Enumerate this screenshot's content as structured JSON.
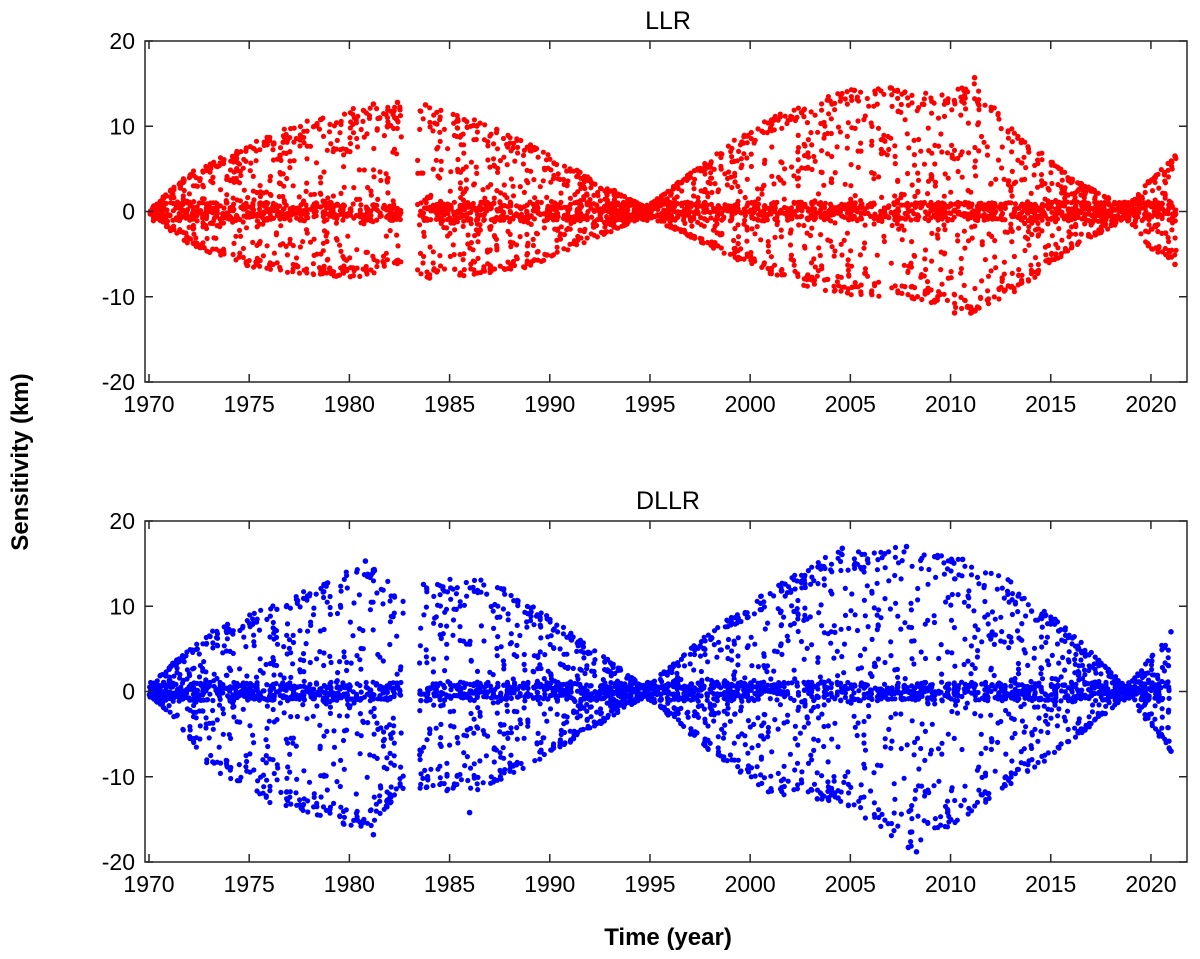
{
  "figure": {
    "ylabel": "Sensitivity (km)",
    "xlabel": "Time (year)"
  },
  "chart_data": [
    {
      "type": "scatter",
      "title": "LLR",
      "xlabel": "",
      "ylabel": "Sensitivity (km)",
      "xlim": [
        1969.8,
        1970.0
      ],
      "ylim": [
        -20,
        20
      ],
      "xticks": [
        "1970",
        "1975",
        "1980",
        "1985",
        "1990",
        "1995",
        "2000",
        "2005",
        "2010",
        "2015",
        "2020"
      ],
      "yticks": [
        "-20",
        "-10",
        "0",
        "10",
        "20"
      ],
      "grid": false,
      "legend": "none",
      "color": "#ff0000",
      "envelope": [
        [
          1970.0,
          0.2,
          -0.2
        ],
        [
          1972.0,
          4.5,
          -4.0
        ],
        [
          1975.0,
          8.0,
          -6.5
        ],
        [
          1978.0,
          11.0,
          -7.5
        ],
        [
          1981.0,
          12.5,
          -7.8
        ],
        [
          1982.3,
          12.8,
          -6.0
        ],
        [
          1983.5,
          12.5,
          -7.8
        ],
        [
          1986.0,
          11.0,
          -7.5
        ],
        [
          1989.0,
          8.0,
          -6.5
        ],
        [
          1992.0,
          4.0,
          -3.5
        ],
        [
          1994.8,
          0.5,
          -0.5
        ],
        [
          1997.0,
          4.5,
          -3.0
        ],
        [
          2000.0,
          10.0,
          -6.5
        ],
        [
          2003.0,
          13.0,
          -9.0
        ],
        [
          2005.0,
          14.3,
          -9.8
        ],
        [
          2007.0,
          14.5,
          -10.0
        ],
        [
          2010.0,
          13.8,
          -11.0
        ],
        [
          2011.0,
          15.8,
          -12.0
        ],
        [
          2013.0,
          10.0,
          -10.0
        ],
        [
          2016.0,
          4.0,
          -4.5
        ],
        [
          2018.8,
          0.5,
          -0.8
        ],
        [
          2020.0,
          4.0,
          -4.5
        ],
        [
          2021.3,
          6.5,
          -6.0
        ]
      ],
      "gaps": [
        [
          1982.6,
          1983.4
        ]
      ],
      "points": [
        {
          "x": 1981.2,
          "y": 12.6
        },
        {
          "x": 1982.4,
          "y": 12.8
        },
        {
          "x": 1983.8,
          "y": 12.5
        },
        {
          "x": 1984.0,
          "y": -7.8
        },
        {
          "x": 1994.8,
          "y": 0.0
        },
        {
          "x": 2005.2,
          "y": 14.2
        },
        {
          "x": 2007.0,
          "y": 14.5
        },
        {
          "x": 2010.2,
          "y": -11.9
        },
        {
          "x": 2011.2,
          "y": 15.7
        },
        {
          "x": 2018.8,
          "y": 0.0
        },
        {
          "x": 2021.2,
          "y": 6.5
        },
        {
          "x": 2021.2,
          "y": -6.2
        }
      ]
    },
    {
      "type": "scatter",
      "title": "DLLR",
      "xlabel": "Time (year)",
      "ylabel": "Sensitivity (km)",
      "xlim": [
        1969.8,
        2021.8
      ],
      "ylim": [
        -20,
        20
      ],
      "xticks": [
        "1970",
        "1975",
        "1980",
        "1985",
        "1990",
        "1995",
        "2000",
        "2005",
        "2010",
        "2015",
        "2020"
      ],
      "yticks": [
        "-20",
        "-10",
        "0",
        "10",
        "20"
      ],
      "grid": false,
      "legend": "none",
      "color": "#0000ff",
      "envelope": [
        [
          1970.0,
          0.5,
          -0.5
        ],
        [
          1971.0,
          3.0,
          -2.5
        ],
        [
          1973.0,
          7.0,
          -9.0
        ],
        [
          1976.0,
          10.0,
          -13.0
        ],
        [
          1979.0,
          13.0,
          -15.0
        ],
        [
          1980.8,
          15.3,
          -16.5
        ],
        [
          1982.5,
          12.0,
          -12.0
        ],
        [
          1984.0,
          13.0,
          -11.5
        ],
        [
          1986.0,
          14.0,
          -12.0
        ],
        [
          1988.0,
          12.0,
          -10.0
        ],
        [
          1991.0,
          7.0,
          -6.0
        ],
        [
          1994.8,
          0.5,
          -0.5
        ],
        [
          1998.0,
          7.0,
          -7.0
        ],
        [
          2001.0,
          12.0,
          -12.0
        ],
        [
          2004.5,
          16.8,
          -13.0
        ],
        [
          2008.0,
          17.0,
          -18.5
        ],
        [
          2010.5,
          15.5,
          -15.0
        ],
        [
          2013.0,
          13.0,
          -11.0
        ],
        [
          2016.0,
          7.0,
          -6.0
        ],
        [
          2018.8,
          0.5,
          -0.5
        ],
        [
          2021.0,
          7.0,
          -7.0
        ]
      ],
      "gaps": [
        [
          1982.7,
          1983.5
        ]
      ],
      "points": [
        {
          "x": 1980.8,
          "y": 15.3
        },
        {
          "x": 1981.2,
          "y": -16.8
        },
        {
          "x": 1986.0,
          "y": -14.2
        },
        {
          "x": 1994.8,
          "y": 0.0
        },
        {
          "x": 2004.6,
          "y": 16.8
        },
        {
          "x": 2007.8,
          "y": 17.0
        },
        {
          "x": 2008.3,
          "y": -18.8
        },
        {
          "x": 2008.0,
          "y": -16.5
        },
        {
          "x": 2010.6,
          "y": 15.5
        },
        {
          "x": 2018.8,
          "y": 0.0
        },
        {
          "x": 2021.0,
          "y": 7.0
        },
        {
          "x": 2021.0,
          "y": -7.0
        }
      ]
    }
  ]
}
